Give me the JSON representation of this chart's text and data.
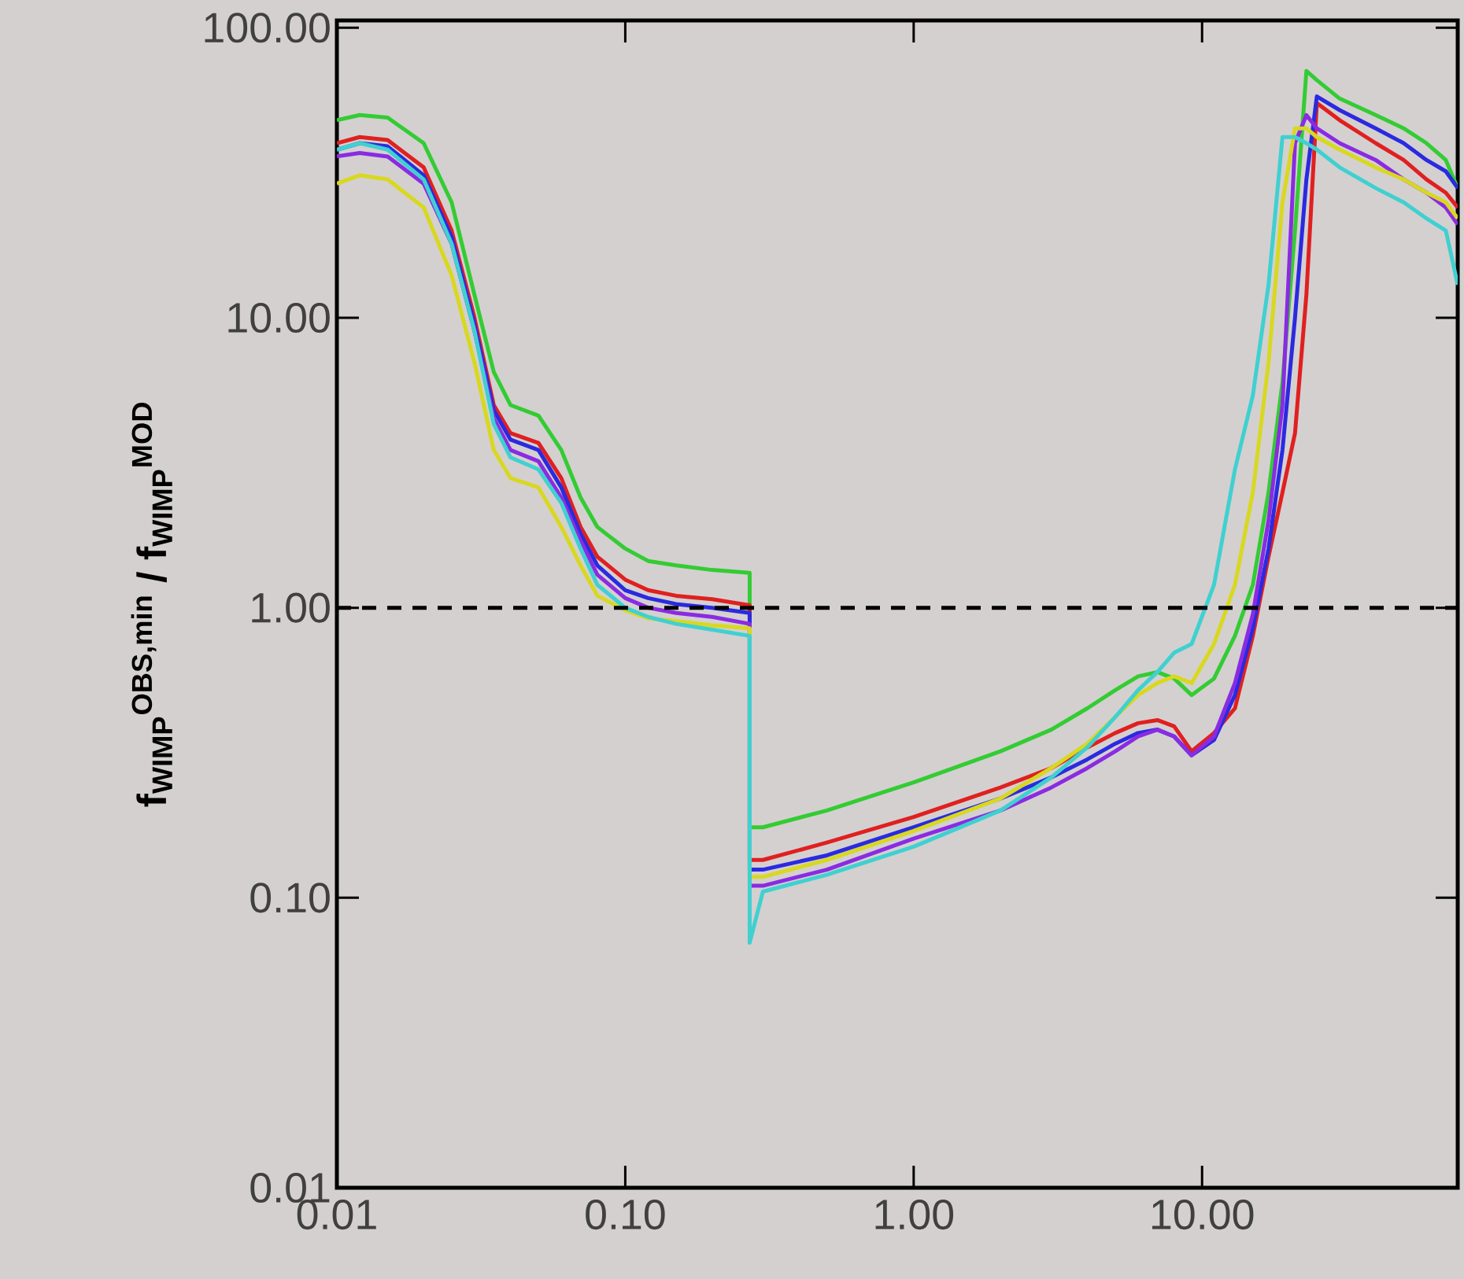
{
  "chart_data": {
    "type": "line",
    "ylabel": "f$_{WIMP}$$^{OBS,min}$ / f$_{WIMP}$$^{MOD}$",
    "log": "xy",
    "line_style": "solid",
    "marker": "none",
    "xlim": [
      0.01,
      77
    ],
    "ylim": [
      0.01,
      106
    ],
    "xticks": [
      0.01,
      {
        "value": 0.1,
        "label": "0.10"
      },
      {
        "value": 1,
        "label": "1.00"
      },
      {
        "value": 10,
        "label": "10.00"
      }
    ],
    "yticks": [
      0.01,
      {
        "value": 0.1,
        "label": "0.10"
      },
      {
        "value": 1,
        "label": "1.00"
      },
      {
        "value": 10,
        "label": "10.00"
      },
      {
        "value": 100,
        "label": "100.00"
      }
    ],
    "ref_lines": [
      {
        "axis": "y",
        "value": 1,
        "color": "#000000",
        "line_style": "dashed"
      }
    ],
    "x": [
      0.01,
      0.012,
      0.015,
      0.02,
      0.025,
      0.03,
      0.035,
      0.04,
      0.05,
      0.06,
      0.07,
      0.08,
      0.1,
      0.12,
      0.15,
      0.2,
      0.27,
      0.27,
      0.3,
      0.5,
      1,
      2,
      3,
      4,
      5,
      6,
      7,
      8,
      9.2,
      11,
      13,
      15,
      17,
      19,
      21,
      23,
      25,
      30,
      40,
      50,
      60,
      70,
      77
    ],
    "series": [
      {
        "color": "#33cc33",
        "values": [
          48,
          50,
          49,
          40,
          25,
          12,
          6.5,
          5.0,
          4.6,
          3.5,
          2.4,
          1.9,
          1.6,
          1.45,
          1.4,
          1.35,
          1.32,
          0.175,
          0.175,
          0.2,
          0.25,
          0.32,
          0.38,
          0.45,
          0.52,
          0.58,
          0.6,
          0.57,
          0.5,
          0.57,
          0.8,
          1.2,
          2.5,
          6,
          20,
          71,
          66,
          57,
          50,
          45,
          40,
          35,
          28
        ]
      },
      {
        "color": "#e02020",
        "values": [
          40,
          42,
          41,
          33,
          20,
          10,
          5,
          4.0,
          3.7,
          2.8,
          1.9,
          1.5,
          1.25,
          1.15,
          1.1,
          1.07,
          1.02,
          0.135,
          0.135,
          0.155,
          0.19,
          0.24,
          0.28,
          0.33,
          0.37,
          0.4,
          0.41,
          0.39,
          0.32,
          0.37,
          0.45,
          0.8,
          1.5,
          2.5,
          4,
          12,
          55,
          48,
          40,
          35,
          30,
          27,
          24
        ]
      },
      {
        "color": "#2a2ae0",
        "values": [
          38,
          40,
          39,
          31,
          19,
          9.5,
          4.8,
          3.8,
          3.5,
          2.6,
          1.8,
          1.4,
          1.15,
          1.08,
          1.03,
          1.0,
          0.96,
          0.125,
          0.125,
          0.14,
          0.175,
          0.22,
          0.26,
          0.3,
          0.34,
          0.37,
          0.38,
          0.36,
          0.31,
          0.35,
          0.5,
          0.85,
          1.6,
          3.5,
          10,
          30,
          58,
          52,
          45,
          40,
          35,
          32,
          28
        ]
      },
      {
        "color": "#8a2be2",
        "values": [
          36,
          37,
          36,
          29,
          18,
          9,
          4.5,
          3.5,
          3.2,
          2.4,
          1.7,
          1.3,
          1.08,
          1.0,
          0.96,
          0.93,
          0.88,
          0.11,
          0.11,
          0.125,
          0.16,
          0.2,
          0.24,
          0.28,
          0.32,
          0.36,
          0.38,
          0.36,
          0.31,
          0.36,
          0.55,
          0.95,
          2.0,
          5,
          40,
          50,
          45,
          40,
          35,
          30,
          27,
          24,
          21
        ]
      },
      {
        "color": "#d8d820",
        "values": [
          29,
          31,
          30,
          24,
          14,
          7,
          3.5,
          2.8,
          2.6,
          1.9,
          1.4,
          1.1,
          0.98,
          0.92,
          0.9,
          0.87,
          0.85,
          0.118,
          0.118,
          0.135,
          0.17,
          0.22,
          0.28,
          0.34,
          0.42,
          0.5,
          0.55,
          0.58,
          0.55,
          0.75,
          1.2,
          2.5,
          7,
          25,
          45,
          45,
          42,
          38,
          33,
          30,
          27,
          25,
          22
        ]
      },
      {
        "color": "#40d0d0",
        "values": [
          38,
          40,
          38,
          30,
          18,
          9,
          4.3,
          3.3,
          3.0,
          2.3,
          1.6,
          1.2,
          1.0,
          0.93,
          0.88,
          0.84,
          0.8,
          0.07,
          0.105,
          0.12,
          0.15,
          0.2,
          0.26,
          0.33,
          0.42,
          0.52,
          0.6,
          0.7,
          0.75,
          1.2,
          3,
          5.4,
          13,
          42,
          42,
          40,
          38,
          33,
          28,
          25,
          22,
          20,
          13
        ]
      }
    ]
  }
}
